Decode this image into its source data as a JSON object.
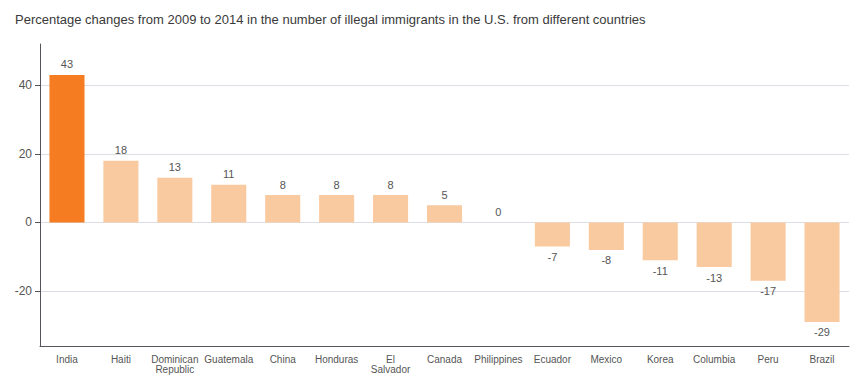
{
  "chart_data": {
    "type": "bar",
    "title": "Percentage changes from 2009 to 2014 in the number of illegal immigrants in the U.S. from different countries",
    "categories": [
      "India",
      "Haiti",
      "Dominican\nRepublic",
      "Guatemala",
      "China",
      "Honduras",
      "El\nSalvador",
      "Canada",
      "Philippines",
      "Ecuador",
      "Mexico",
      "Korea",
      "Columbia",
      "Peru",
      "Brazil"
    ],
    "values": [
      43,
      18,
      13,
      11,
      8,
      8,
      8,
      5,
      0,
      -7,
      -8,
      -11,
      -13,
      -17,
      -29
    ],
    "colors": [
      "#f57c20",
      "#f9c9a0",
      "#f9c9a0",
      "#f9c9a0",
      "#f9c9a0",
      "#f9c9a0",
      "#f9c9a0",
      "#f9c9a0",
      "#f9c9a0",
      "#f9c9a0",
      "#f9c9a0",
      "#f9c9a0",
      "#f9c9a0",
      "#f9c9a0",
      "#f9c9a0"
    ],
    "ylim": [
      -36,
      52
    ],
    "yticks": [
      -20,
      0,
      20,
      40
    ],
    "grid": true,
    "data_labels": true
  }
}
